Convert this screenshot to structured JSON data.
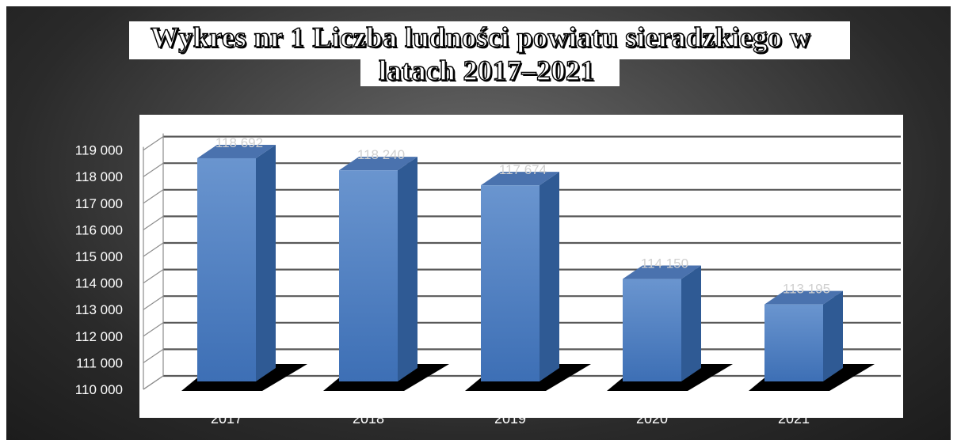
{
  "chart_data": {
    "type": "bar",
    "title_line1": "Wykres nr 1 Liczba ludności powiatu sieradzkiego w",
    "title_line2": "latach 2017–2021",
    "categories": [
      "2017",
      "2018",
      "2019",
      "2020",
      "2021"
    ],
    "values": [
      118692,
      118240,
      117674,
      114150,
      113195
    ],
    "value_labels": [
      "118 692",
      "118 240",
      "117 674",
      "114 150",
      "113 195"
    ],
    "y_ticks": [
      "110 000",
      "111 000",
      "112 000",
      "113 000",
      "114 000",
      "115 000",
      "116 000",
      "117 000",
      "118 000",
      "119 000"
    ],
    "ylim": [
      110000,
      119000
    ],
    "grid": true,
    "legend": "none",
    "bar_color": "#4f81bd"
  }
}
